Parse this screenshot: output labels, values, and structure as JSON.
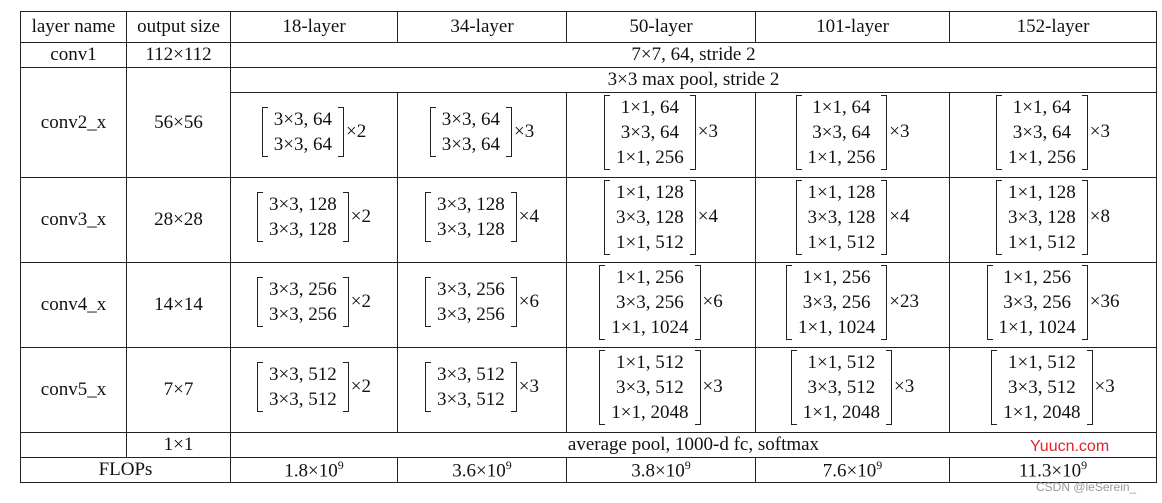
{
  "header": [
    "layer name",
    "output size",
    "18-layer",
    "34-layer",
    "50-layer",
    "101-layer",
    "152-layer"
  ],
  "conv1": {
    "name": "conv1",
    "size": "112×112",
    "desc": "7×7, 64, stride 2"
  },
  "pool": "3×3 max pool, stride 2",
  "stages": [
    {
      "name": "conv2_x",
      "size": "56×56",
      "blocks": [
        {
          "lines": [
            "3×3, 64",
            "3×3, 64"
          ],
          "rep": "×2"
        },
        {
          "lines": [
            "3×3, 64",
            "3×3, 64"
          ],
          "rep": "×3"
        },
        {
          "lines": [
            "1×1, 64",
            "3×3, 64",
            "1×1, 256"
          ],
          "rep": "×3"
        },
        {
          "lines": [
            "1×1, 64",
            "3×3, 64",
            "1×1, 256"
          ],
          "rep": "×3"
        },
        {
          "lines": [
            "1×1, 64",
            "3×3, 64",
            "1×1, 256"
          ],
          "rep": "×3"
        }
      ]
    },
    {
      "name": "conv3_x",
      "size": "28×28",
      "blocks": [
        {
          "lines": [
            "3×3, 128",
            "3×3, 128"
          ],
          "rep": "×2"
        },
        {
          "lines": [
            "3×3, 128",
            "3×3, 128"
          ],
          "rep": "×4"
        },
        {
          "lines": [
            "1×1, 128",
            "3×3, 128",
            "1×1, 512"
          ],
          "rep": "×4"
        },
        {
          "lines": [
            "1×1, 128",
            "3×3, 128",
            "1×1, 512"
          ],
          "rep": "×4"
        },
        {
          "lines": [
            "1×1, 128",
            "3×3, 128",
            "1×1, 512"
          ],
          "rep": "×8"
        }
      ]
    },
    {
      "name": "conv4_x",
      "size": "14×14",
      "blocks": [
        {
          "lines": [
            "3×3, 256",
            "3×3, 256"
          ],
          "rep": "×2"
        },
        {
          "lines": [
            "3×3, 256",
            "3×3, 256"
          ],
          "rep": "×6"
        },
        {
          "lines": [
            "1×1, 256",
            "3×3, 256",
            "1×1, 1024"
          ],
          "rep": "×6"
        },
        {
          "lines": [
            "1×1, 256",
            "3×3, 256",
            "1×1, 1024"
          ],
          "rep": "×23"
        },
        {
          "lines": [
            "1×1, 256",
            "3×3, 256",
            "1×1, 1024"
          ],
          "rep": "×36"
        }
      ]
    },
    {
      "name": "conv5_x",
      "size": "7×7",
      "blocks": [
        {
          "lines": [
            "3×3, 512",
            "3×3, 512"
          ],
          "rep": "×2"
        },
        {
          "lines": [
            "3×3, 512",
            "3×3, 512"
          ],
          "rep": "×3"
        },
        {
          "lines": [
            "1×1, 512",
            "3×3, 512",
            "1×1, 2048"
          ],
          "rep": "×3"
        },
        {
          "lines": [
            "1×1, 512",
            "3×3, 512",
            "1×1, 2048"
          ],
          "rep": "×3"
        },
        {
          "lines": [
            "1×1, 512",
            "3×3, 512",
            "1×1, 2048"
          ],
          "rep": "×3"
        }
      ]
    }
  ],
  "final": {
    "size": "1×1",
    "desc": "average pool, 1000-d fc, softmax"
  },
  "flops": {
    "label": "FLOPs",
    "values": [
      {
        "base": "1.8×10",
        "exp": "9"
      },
      {
        "base": "3.6×10",
        "exp": "9"
      },
      {
        "base": "3.8×10",
        "exp": "9"
      },
      {
        "base": "7.6×10",
        "exp": "9"
      },
      {
        "base": "11.3×10",
        "exp": "9"
      }
    ]
  },
  "watermark": {
    "site": "Yuucn.com",
    "credit": "CSDN @leSerein_"
  }
}
